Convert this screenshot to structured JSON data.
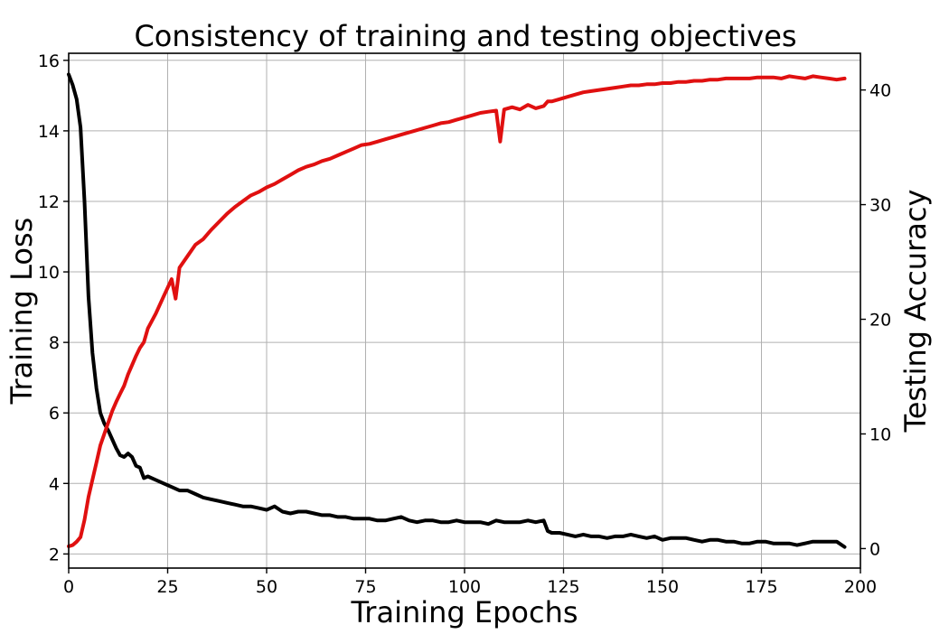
{
  "chart_data": {
    "type": "line",
    "title": "Consistency of training and testing objectives",
    "xlabel": "Training Epochs",
    "ylabel": "Training Loss",
    "y2label": "Testing Accuracy",
    "xlim": [
      0,
      200
    ],
    "ylim": [
      1.6,
      16.2
    ],
    "y2lim": [
      -1.7,
      43.2
    ],
    "grid": true,
    "x_ticks": [
      0,
      25,
      50,
      75,
      100,
      125,
      150,
      175,
      200
    ],
    "y_ticks": [
      2,
      4,
      6,
      8,
      10,
      12,
      14,
      16
    ],
    "y2_ticks": [
      0,
      10,
      20,
      30,
      40
    ],
    "colors": {
      "loss": "#000000",
      "accuracy": "#e01010",
      "grid": "#b0b0b0"
    },
    "series": [
      {
        "name": "Training Loss",
        "axis": "left",
        "x": [
          0,
          1,
          2,
          3,
          4,
          5,
          6,
          7,
          8,
          9,
          10,
          11,
          12,
          13,
          14,
          15,
          16,
          17,
          18,
          19,
          20,
          22,
          24,
          26,
          28,
          30,
          32,
          34,
          36,
          38,
          40,
          42,
          44,
          46,
          48,
          50,
          52,
          54,
          56,
          58,
          60,
          62,
          64,
          66,
          68,
          70,
          72,
          74,
          76,
          78,
          80,
          82,
          84,
          86,
          88,
          90,
          92,
          94,
          96,
          98,
          100,
          102,
          104,
          106,
          108,
          110,
          112,
          114,
          116,
          118,
          120,
          121,
          122,
          124,
          126,
          128,
          130,
          132,
          134,
          136,
          138,
          140,
          142,
          144,
          146,
          148,
          150,
          152,
          154,
          156,
          158,
          160,
          162,
          164,
          166,
          168,
          170,
          172,
          174,
          176,
          178,
          180,
          182,
          184,
          186,
          188,
          190,
          192,
          194,
          196
        ],
        "values": [
          15.6,
          15.3,
          14.9,
          14.1,
          12.0,
          9.3,
          7.7,
          6.7,
          6.0,
          5.7,
          5.5,
          5.25,
          5.0,
          4.8,
          4.75,
          4.85,
          4.75,
          4.5,
          4.45,
          4.15,
          4.2,
          4.1,
          4.0,
          3.9,
          3.8,
          3.8,
          3.7,
          3.6,
          3.55,
          3.5,
          3.45,
          3.4,
          3.35,
          3.35,
          3.3,
          3.25,
          3.35,
          3.2,
          3.15,
          3.2,
          3.2,
          3.15,
          3.1,
          3.1,
          3.05,
          3.05,
          3.0,
          3.0,
          3.0,
          2.95,
          2.95,
          3.0,
          3.05,
          2.95,
          2.9,
          2.95,
          2.95,
          2.9,
          2.9,
          2.95,
          2.9,
          2.9,
          2.9,
          2.85,
          2.95,
          2.9,
          2.9,
          2.9,
          2.95,
          2.9,
          2.95,
          2.65,
          2.6,
          2.6,
          2.55,
          2.5,
          2.55,
          2.5,
          2.5,
          2.45,
          2.5,
          2.5,
          2.55,
          2.5,
          2.45,
          2.5,
          2.4,
          2.45,
          2.45,
          2.45,
          2.4,
          2.35,
          2.4,
          2.4,
          2.35,
          2.35,
          2.3,
          2.3,
          2.35,
          2.35,
          2.3,
          2.3,
          2.3,
          2.25,
          2.3,
          2.35,
          2.35,
          2.35,
          2.35,
          2.2
        ]
      },
      {
        "name": "Testing Accuracy",
        "axis": "right",
        "x": [
          0,
          1,
          2,
          3,
          4,
          5,
          6,
          7,
          8,
          9,
          10,
          11,
          12,
          13,
          14,
          15,
          16,
          17,
          18,
          19,
          20,
          22,
          24,
          26,
          27,
          28,
          30,
          32,
          34,
          36,
          38,
          40,
          42,
          44,
          46,
          48,
          50,
          52,
          54,
          56,
          58,
          60,
          62,
          64,
          66,
          68,
          70,
          72,
          74,
          76,
          78,
          80,
          82,
          84,
          86,
          88,
          90,
          92,
          94,
          96,
          98,
          100,
          102,
          104,
          106,
          108,
          109,
          110,
          112,
          114,
          116,
          118,
          120,
          121,
          122,
          124,
          126,
          128,
          130,
          132,
          134,
          136,
          138,
          140,
          142,
          144,
          146,
          148,
          150,
          152,
          154,
          156,
          158,
          160,
          162,
          164,
          166,
          168,
          170,
          172,
          174,
          176,
          178,
          180,
          182,
          184,
          186,
          188,
          190,
          192,
          194,
          196
        ],
        "values": [
          0.2,
          0.3,
          0.6,
          1.0,
          2.5,
          4.5,
          6.0,
          7.5,
          9.0,
          10.0,
          11.0,
          12.0,
          12.8,
          13.5,
          14.2,
          15.2,
          16.0,
          16.8,
          17.5,
          18.0,
          19.2,
          20.5,
          22.0,
          23.5,
          21.8,
          24.5,
          25.5,
          26.5,
          27.0,
          27.8,
          28.5,
          29.2,
          29.8,
          30.3,
          30.8,
          31.1,
          31.5,
          31.8,
          32.2,
          32.6,
          33.0,
          33.3,
          33.5,
          33.8,
          34.0,
          34.3,
          34.6,
          34.9,
          35.2,
          35.3,
          35.5,
          35.7,
          35.9,
          36.1,
          36.3,
          36.5,
          36.7,
          36.9,
          37.1,
          37.2,
          37.4,
          37.6,
          37.8,
          38.0,
          38.1,
          38.2,
          35.5,
          38.3,
          38.5,
          38.3,
          38.7,
          38.4,
          38.6,
          39.0,
          39.0,
          39.2,
          39.4,
          39.6,
          39.8,
          39.9,
          40.0,
          40.1,
          40.2,
          40.3,
          40.4,
          40.4,
          40.5,
          40.5,
          40.6,
          40.6,
          40.7,
          40.7,
          40.8,
          40.8,
          40.9,
          40.9,
          41.0,
          41.0,
          41.0,
          41.0,
          41.1,
          41.1,
          41.1,
          41.0,
          41.2,
          41.1,
          41.0,
          41.2,
          41.1,
          41.0,
          40.9,
          41.0
        ]
      }
    ]
  }
}
